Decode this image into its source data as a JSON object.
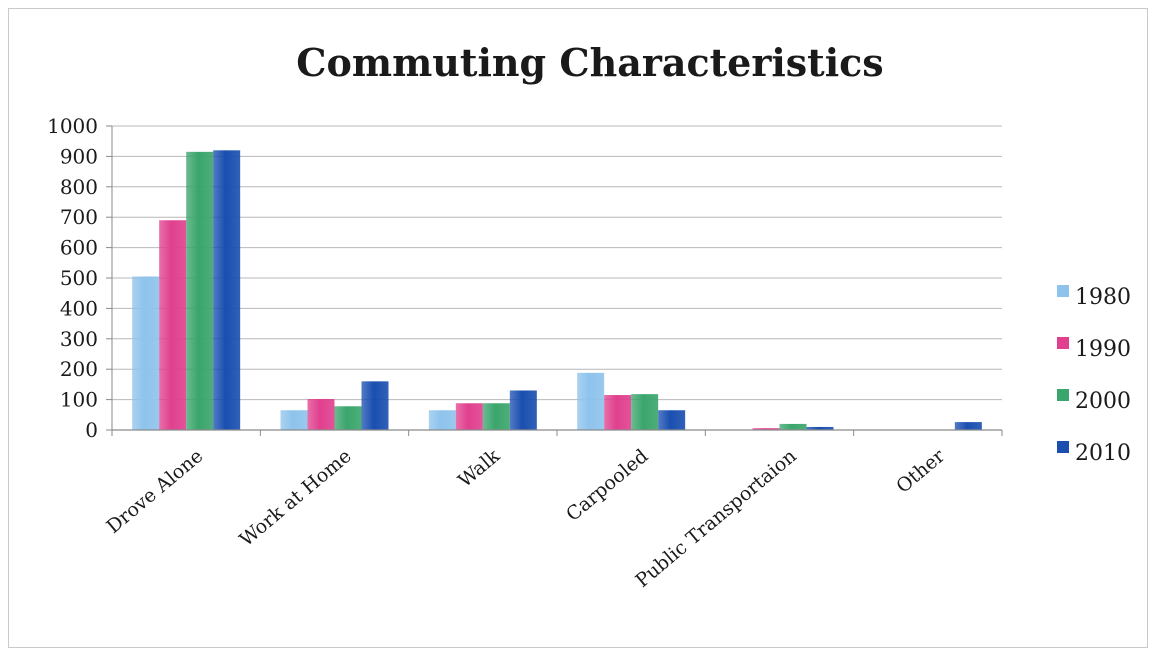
{
  "chart_data": {
    "type": "bar",
    "title": "Commuting Characteristics",
    "xlabel": "",
    "ylabel": "",
    "ylim": [
      0,
      1000
    ],
    "yticks": [
      0,
      100,
      200,
      300,
      400,
      500,
      600,
      700,
      800,
      900,
      1000
    ],
    "grid": true,
    "legend_position": "right",
    "categories": [
      "Drove Alone",
      "Work at Home",
      "Walk",
      "Carpooled",
      "Public Transportaion",
      "Other"
    ],
    "series": [
      {
        "name": "1980",
        "color": "#8ec3ec",
        "values": [
          505,
          65,
          65,
          188,
          0,
          0
        ]
      },
      {
        "name": "1990",
        "color": "#e0408e",
        "values": [
          690,
          102,
          88,
          115,
          6,
          0
        ]
      },
      {
        "name": "2000",
        "color": "#3aa56c",
        "values": [
          915,
          78,
          88,
          118,
          20,
          0
        ]
      },
      {
        "name": "2010",
        "color": "#1a4fb0",
        "values": [
          920,
          160,
          130,
          65,
          10,
          26
        ]
      }
    ]
  }
}
